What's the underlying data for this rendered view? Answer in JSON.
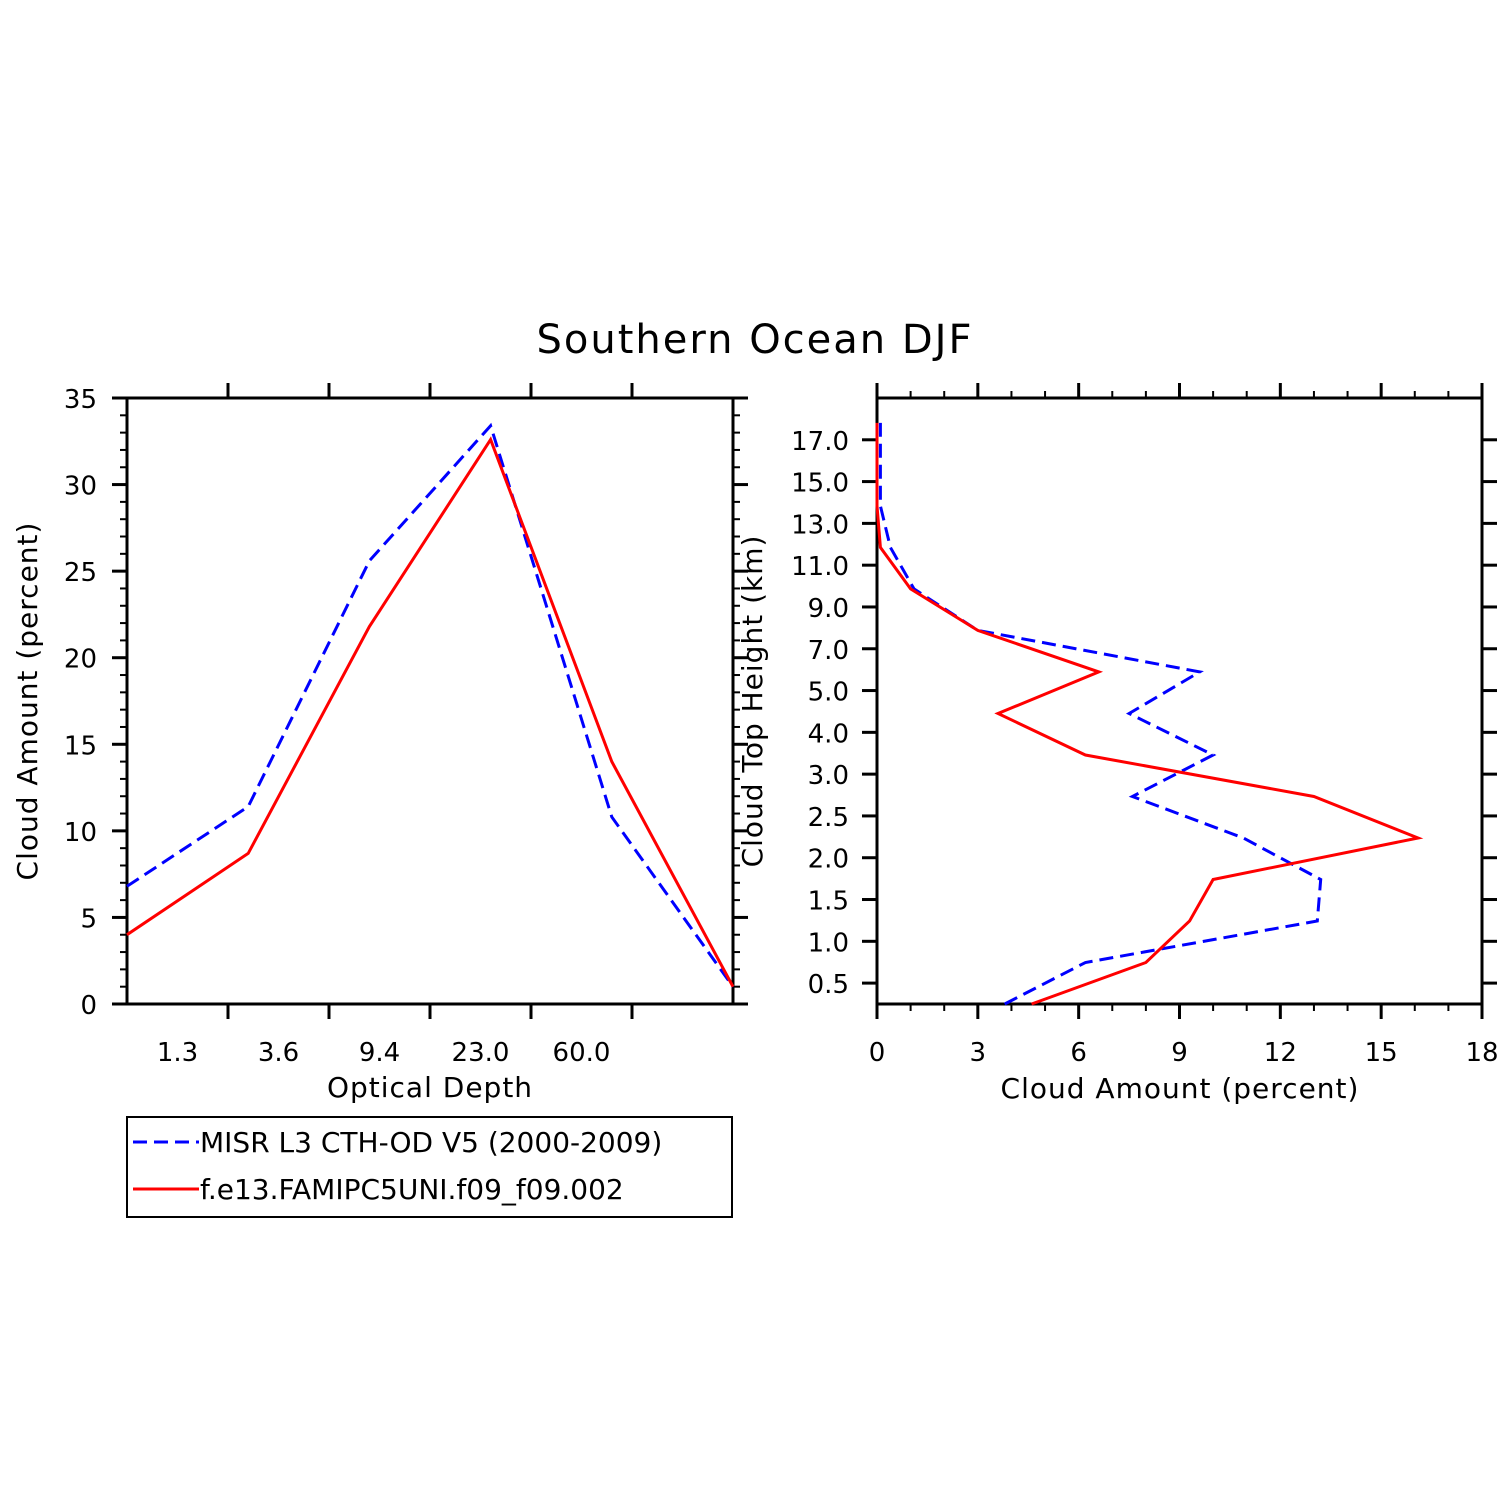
{
  "title": "Southern Ocean DJF",
  "colors": {
    "series_a": "#0000ff",
    "series_b": "#ff0000",
    "axes": "#000000"
  },
  "legend": {
    "entries": [
      {
        "label": "MISR L3 CTH-OD V5 (2000-2009)",
        "style": "dashed",
        "color": "#0000ff"
      },
      {
        "label": "f.e13.FAMIPC5UNI.f09_f09.002",
        "style": "solid",
        "color": "#ff0000"
      }
    ]
  },
  "chart_data": [
    {
      "type": "line",
      "xlabel": "Optical Depth",
      "ylabel": "Cloud Amount (percent)",
      "x_tick_labels": [
        "1.3",
        "3.6",
        "9.4",
        "23.0",
        "60.0"
      ],
      "x_bins": 6,
      "ylim": [
        0,
        35
      ],
      "y_ticks": [
        0,
        5,
        10,
        15,
        20,
        25,
        30,
        35
      ],
      "y_minor_step": 1,
      "series": [
        {
          "name": "MISR L3 CTH-OD V5 (2000-2009)",
          "style": "dashed",
          "color": "#0000ff",
          "values": [
            6.8,
            11.4,
            25.6,
            33.4,
            10.8,
            1.0
          ]
        },
        {
          "name": "f.e13.FAMIPC5UNI.f09_f09.002",
          "style": "solid",
          "color": "#ff0000",
          "values": [
            4.0,
            8.7,
            21.8,
            32.6,
            14.0,
            1.0
          ]
        }
      ]
    },
    {
      "type": "line",
      "xlabel": "Cloud Amount (percent)",
      "ylabel": "Cloud Top Height (km)",
      "xlim": [
        0,
        18
      ],
      "x_ticks": [
        0,
        3,
        6,
        9,
        12,
        15,
        18
      ],
      "x_minor_step": 1,
      "y_tick_labels": [
        "0.5",
        "1.0",
        "1.5",
        "2.0",
        "2.5",
        "3.0",
        "4.0",
        "5.0",
        "7.0",
        "9.0",
        "11.0",
        "13.0",
        "15.0",
        "17.0"
      ],
      "series": [
        {
          "name": "MISR L3 CTH-OD V5 (2000-2009)",
          "style": "dashed",
          "color": "#0000ff",
          "values": [
            3.8,
            6.2,
            13.1,
            13.2,
            10.9,
            7.6,
            10.0,
            7.5,
            9.6,
            3.0,
            1.1,
            0.4,
            0.1,
            0.1,
            0.1
          ]
        },
        {
          "name": "f.e13.FAMIPC5UNI.f09_f09.002",
          "style": "solid",
          "color": "#ff0000",
          "values": [
            4.6,
            8.0,
            9.3,
            10.0,
            16.1,
            13.0,
            6.2,
            3.6,
            6.6,
            3.0,
            1.0,
            0.1,
            0.0,
            0.0,
            0.0
          ]
        }
      ]
    }
  ]
}
